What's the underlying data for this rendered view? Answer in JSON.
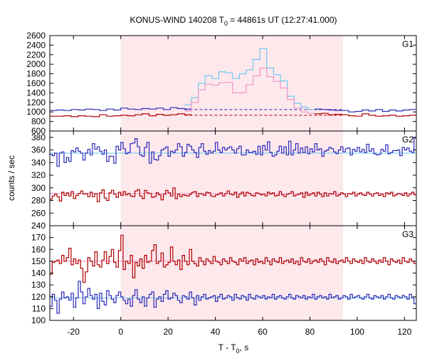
{
  "chart_data": {
    "type": "line",
    "title_parts": {
      "pre": "KONUS-WIND 140208  T",
      "sub": "0",
      "post": " = 44861s UT (12:27:41.000)"
    },
    "xlabel_parts": {
      "pre": "T - T",
      "sub": "0",
      "post": ", s"
    },
    "ylabel": "counts / sec",
    "xlim": [
      -30,
      125
    ],
    "xticks": [
      "-20",
      "0",
      "20",
      "40",
      "60",
      "80",
      "100",
      "120"
    ],
    "xtick_values": [
      -20,
      0,
      20,
      40,
      60,
      80,
      100,
      120
    ],
    "highlight_interval": [
      0,
      94
    ],
    "colors": {
      "blue": "#2a2ab8",
      "red": "#b00000",
      "cyan": "#6ec8f0",
      "pink": "#f096c8",
      "shade": "#fde8ec"
    },
    "panels": [
      {
        "label": "G1",
        "ylim": [
          600,
          2600
        ],
        "yticks": [
          "600",
          "800",
          "1000",
          "1200",
          "1400",
          "1600",
          "1800",
          "2000",
          "2200",
          "2400",
          "2600"
        ],
        "ytick_values": [
          600,
          800,
          1000,
          1200,
          1400,
          1600,
          1800,
          2000,
          2200,
          2400,
          2600
        ],
        "bin_start": -30,
        "bin_width": 3,
        "series": [
          {
            "color": "#2a2ab8",
            "x_range": [
              -30,
              30
            ],
            "values": [
              1030,
              1040,
              1030,
              1050,
              1040,
              1060,
              1050,
              1030,
              1060,
              1040,
              1080,
              1060,
              1050,
              1070,
              1060,
              1080,
              1050,
              1090,
              1070,
              1060
            ]
          },
          {
            "color": "#6ec8f0",
            "x_range": [
              27,
              82
            ],
            "values": [
              1150,
              1300,
              1600,
              1760,
              1700,
              1840,
              1820,
              1700,
              1800,
              1880,
              2100,
              2330,
              1920,
              1780,
              1650,
              1330,
              1180,
              1100,
              1050
            ]
          },
          {
            "color": "#2a2ab8",
            "x_range": [
              82,
              125
            ],
            "values": [
              1060,
              1050,
              1040,
              1030,
              1030,
              1000,
              1010,
              1040,
              1020,
              1050,
              1010,
              1040,
              1020,
              1040,
              1050
            ]
          },
          {
            "color": "#b00000",
            "x_range": [
              -30,
              30
            ],
            "values": [
              910,
              910,
              920,
              900,
              920,
              910,
              900,
              940,
              910,
              920,
              930,
              920,
              940,
              960,
              920,
              950,
              930,
              940,
              960,
              940
            ]
          },
          {
            "color": "#f096c8",
            "x_range": [
              27,
              82
            ],
            "values": [
              1020,
              1200,
              1460,
              1580,
              1560,
              1610,
              1620,
              1400,
              1400,
              1570,
              1760,
              1920,
              1740,
              1640,
              1500,
              1260,
              1080,
              1000,
              970
            ]
          },
          {
            "color": "#b00000",
            "x_range": [
              82,
              125
            ],
            "values": [
              960,
              970,
              940,
              950,
              940,
              920,
              910,
              960,
              930,
              910,
              920,
              930,
              910,
              920,
              930
            ]
          }
        ],
        "backgrounds": [
          {
            "color": "#2a2ab8",
            "value": 1050,
            "dashed": true,
            "x_range": [
              27,
              94
            ]
          },
          {
            "color": "#b00000",
            "value": 930,
            "dashed": true,
            "x_range": [
              27,
              94
            ]
          }
        ]
      },
      {
        "label": "G2",
        "ylim": [
          240,
          390
        ],
        "yticks": [
          "240",
          "260",
          "280",
          "300",
          "320",
          "340",
          "360",
          "380"
        ],
        "ytick_values": [
          240,
          260,
          280,
          300,
          320,
          340,
          360,
          380
        ],
        "bin_start": -30,
        "bin_width": 3,
        "series": [
          {
            "color": "#2a2ab8",
            "x_range": [
              -30,
              125
            ],
            "values": [
              353,
              351,
              355,
              334,
              355,
              357,
              340,
              348,
              342,
              359,
              357,
              363,
              358,
              355,
              344,
              355,
              361,
              352,
              370,
              361,
              365,
              358,
              353,
              360,
              342,
              350,
              350,
              339,
              366,
              360,
              372,
              362,
              354,
              356,
              370,
              371,
              378,
              365,
              352,
              350,
              364,
              372,
              339,
              357,
              345,
              344,
              351,
              360,
              362,
              365,
              350,
              358,
              356,
              360,
              370,
              365,
              350,
              356,
              369,
              366,
              360,
              356,
              348,
              364,
              370,
              358,
              353,
              359,
              355,
              358,
              372,
              360,
              356,
              364,
              360,
              363,
              365,
              360,
              355,
              362,
              366,
              352,
              352,
              360,
              356,
              356,
              358,
              353,
              366,
              352,
              367,
              360,
              373,
              356,
              350,
              352,
              358,
              366,
              355,
              365,
              352,
              374,
              352,
              360,
              370,
              355,
              363,
              356,
              365,
              354,
              362,
              357,
              370,
              360,
              362,
              350,
              358,
              360,
              364,
              362,
              357,
              354,
              360,
              365,
              357,
              362,
              363,
              352,
              361,
              358,
              364,
              357,
              361,
              356,
              369,
              358,
              362,
              354,
              352,
              353,
              361,
              358,
              368,
              354,
              356,
              359,
              359,
              360,
              351,
              364,
              360,
              363,
              358,
              356,
              379
            ]
          },
          {
            "color": "#b00000",
            "x_range": [
              -30,
              125
            ],
            "values": [
              282,
              287,
              290,
              286,
              279,
              293,
              288,
              292,
              287,
              294,
              283,
              288,
              291,
              295,
              290,
              291,
              286,
              293,
              286,
              291,
              278,
              292,
              297,
              284,
              280,
              292,
              296,
              290,
              285,
              293,
              288,
              294,
              289,
              291,
              287,
              286,
              295,
              297,
              287,
              283,
              296,
              292,
              291,
              285,
              286,
              292,
              289,
              281,
              290,
              296,
              292,
              287,
              300,
              283,
              290,
              286,
              289,
              288,
              287,
              290,
              293,
              294,
              286,
              291,
              290,
              288,
              293,
              292,
              287,
              286,
              289,
              290,
              292,
              287,
              291,
              295,
              290,
              289,
              293,
              285,
              290,
              293,
              287,
              293,
              291,
              288,
              287,
              292,
              291,
              289,
              290,
              287,
              293,
              290,
              292,
              287,
              288,
              294,
              289,
              286,
              290,
              291,
              294,
              287,
              289,
              290,
              292,
              285,
              293,
              288,
              290,
              292,
              287,
              293,
              290,
              286,
              292,
              287,
              291,
              290,
              294,
              287,
              289,
              292,
              290,
              286,
              291,
              290,
              293,
              287,
              290,
              292,
              289,
              288,
              293,
              290,
              287,
              291,
              292,
              288,
              290,
              286,
              292,
              290,
              293,
              287,
              289,
              291,
              290,
              288,
              292,
              287,
              290,
              293,
              289
            ]
          }
        ],
        "fits": [
          {
            "color": "#6ec8f0",
            "value": 355
          },
          {
            "color": "#f096c8",
            "value": 291
          }
        ]
      },
      {
        "label": "G3",
        "ylim": [
          100,
          180
        ],
        "yticks": [
          "100",
          "110",
          "120",
          "130",
          "140",
          "150",
          "160",
          "170"
        ],
        "ytick_values": [
          100,
          110,
          120,
          130,
          140,
          150,
          160,
          170
        ],
        "bin_start": -30,
        "bin_width": 3,
        "series": [
          {
            "color": "#b00000",
            "x_range": [
              -30,
              125
            ],
            "values": [
              139,
              149,
              150,
              151,
              148,
              155,
              150,
              153,
              161,
              147,
              152,
              148,
              151,
              144,
              132,
              141,
              153,
              150,
              146,
              158,
              147,
              145,
              151,
              158,
              148,
              154,
              160,
              149,
              145,
              159,
              172,
              143,
              150,
              148,
              155,
              136,
              149,
              146,
              152,
              144,
              155,
              149,
              150,
              159,
              164,
              148,
              150,
              157,
              145,
              147,
              149,
              162,
              150,
              147,
              151,
              143,
              155,
              150,
              147,
              160,
              150,
              148,
              146,
              153,
              150,
              147,
              152,
              150,
              148,
              154,
              150,
              149,
              147,
              152,
              150,
              148,
              153,
              150,
              149,
              147,
              152,
              150,
              153,
              148,
              150,
              151,
              147,
              152,
              149,
              150,
              148,
              153,
              150,
              147,
              152,
              150,
              149,
              153,
              148,
              150,
              151,
              149,
              152,
              148,
              150,
              147,
              153,
              150,
              149,
              152,
              148,
              150,
              151,
              149,
              152,
              150,
              147,
              153,
              150,
              149,
              152,
              148,
              150,
              151,
              149,
              153,
              150,
              148,
              152,
              150,
              149,
              151,
              148,
              153,
              150,
              149,
              152,
              150,
              148,
              151,
              149,
              153,
              150,
              147,
              152,
              150,
              149,
              151,
              148,
              153,
              150,
              149,
              152,
              150,
              148
            ]
          },
          {
            "color": "#2a2ab8",
            "x_range": [
              -30,
              125
            ],
            "values": [
              112,
              122,
              117,
              106,
              118,
              124,
              119,
              120,
              117,
              123,
              111,
              119,
              133,
              124,
              114,
              120,
              127,
              121,
              118,
              122,
              110,
              123,
              116,
              113,
              125,
              121,
              118,
              115,
              121,
              124,
              120,
              117,
              114,
              118,
              112,
              121,
              126,
              118,
              115,
              120,
              112,
              119,
              122,
              124,
              111,
              118,
              120,
              116,
              122,
              125,
              118,
              119,
              123,
              121,
              117,
              115,
              121,
              120,
              118,
              124,
              119,
              113,
              121,
              117,
              120,
              122,
              118,
              119,
              120,
              121,
              116,
              120,
              122,
              118,
              119,
              121,
              120,
              117,
              122,
              119,
              118,
              121,
              120,
              117,
              122,
              119,
              118,
              121,
              120,
              119,
              121,
              118,
              120,
              119,
              122,
              118,
              120,
              121,
              119,
              118,
              120,
              122,
              119,
              118,
              121,
              120,
              119,
              121,
              118,
              120,
              119,
              122,
              118,
              120,
              121,
              119,
              120,
              118,
              122,
              119,
              120,
              121,
              118,
              119,
              121,
              120,
              118,
              122,
              119,
              120,
              121,
              119,
              118,
              120,
              122,
              119,
              118,
              121,
              120,
              119,
              121,
              118,
              120,
              122,
              119,
              118,
              121,
              120,
              119,
              121,
              120,
              118,
              122,
              119,
              114
            ]
          }
        ],
        "fits": [
          {
            "color": "#f096c8",
            "value": 150
          },
          {
            "color": "#6ec8f0",
            "value": 119
          }
        ]
      }
    ]
  }
}
